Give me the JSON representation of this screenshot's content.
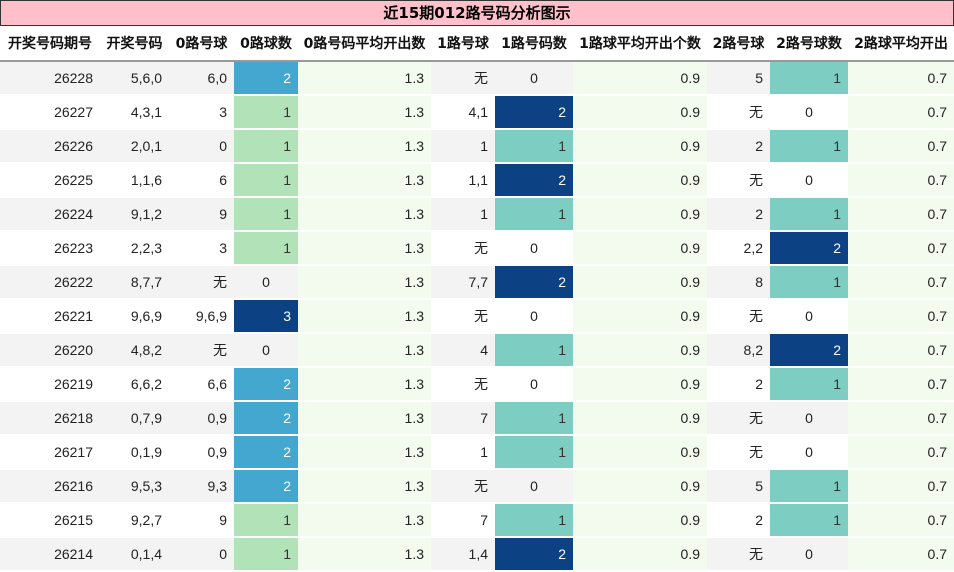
{
  "title": "近15期012路号码分析图示",
  "headers": [
    "开奖号码期号",
    "开奖号码",
    "0路号球",
    "0路球数",
    "0路号码平均开出数",
    "1路号球",
    "1路号码数",
    "1路球平均开出个数",
    "2路号球",
    "2路号球数",
    "2路球平均开出"
  ],
  "rows": [
    {
      "issue": "26228",
      "number": "5,6,0",
      "r0_balls": "6,0",
      "r0_count": "2",
      "r0_avg": "1.3",
      "r1_balls": "无",
      "r1_count": "0",
      "r1_avg": "0.9",
      "r2_balls": "5",
      "r2_count": "1",
      "r2_avg": "0.7"
    },
    {
      "issue": "26227",
      "number": "4,3,1",
      "r0_balls": "3",
      "r0_count": "1",
      "r0_avg": "1.3",
      "r1_balls": "4,1",
      "r1_count": "2",
      "r1_avg": "0.9",
      "r2_balls": "无",
      "r2_count": "0",
      "r2_avg": "0.7"
    },
    {
      "issue": "26226",
      "number": "2,0,1",
      "r0_balls": "0",
      "r0_count": "1",
      "r0_avg": "1.3",
      "r1_balls": "1",
      "r1_count": "1",
      "r1_avg": "0.9",
      "r2_balls": "2",
      "r2_count": "1",
      "r2_avg": "0.7"
    },
    {
      "issue": "26225",
      "number": "1,1,6",
      "r0_balls": "6",
      "r0_count": "1",
      "r0_avg": "1.3",
      "r1_balls": "1,1",
      "r1_count": "2",
      "r1_avg": "0.9",
      "r2_balls": "无",
      "r2_count": "0",
      "r2_avg": "0.7"
    },
    {
      "issue": "26224",
      "number": "9,1,2",
      "r0_balls": "9",
      "r0_count": "1",
      "r0_avg": "1.3",
      "r1_balls": "1",
      "r1_count": "1",
      "r1_avg": "0.9",
      "r2_balls": "2",
      "r2_count": "1",
      "r2_avg": "0.7"
    },
    {
      "issue": "26223",
      "number": "2,2,3",
      "r0_balls": "3",
      "r0_count": "1",
      "r0_avg": "1.3",
      "r1_balls": "无",
      "r1_count": "0",
      "r1_avg": "0.9",
      "r2_balls": "2,2",
      "r2_count": "2",
      "r2_avg": "0.7"
    },
    {
      "issue": "26222",
      "number": "8,7,7",
      "r0_balls": "无",
      "r0_count": "0",
      "r0_avg": "1.3",
      "r1_balls": "7,7",
      "r1_count": "2",
      "r1_avg": "0.9",
      "r2_balls": "8",
      "r2_count": "1",
      "r2_avg": "0.7"
    },
    {
      "issue": "26221",
      "number": "9,6,9",
      "r0_balls": "9,6,9",
      "r0_count": "3",
      "r0_avg": "1.3",
      "r1_balls": "无",
      "r1_count": "0",
      "r1_avg": "0.9",
      "r2_balls": "无",
      "r2_count": "0",
      "r2_avg": "0.7"
    },
    {
      "issue": "26220",
      "number": "4,8,2",
      "r0_balls": "无",
      "r0_count": "0",
      "r0_avg": "1.3",
      "r1_balls": "4",
      "r1_count": "1",
      "r1_avg": "0.9",
      "r2_balls": "8,2",
      "r2_count": "2",
      "r2_avg": "0.7"
    },
    {
      "issue": "26219",
      "number": "6,6,2",
      "r0_balls": "6,6",
      "r0_count": "2",
      "r0_avg": "1.3",
      "r1_balls": "无",
      "r1_count": "0",
      "r1_avg": "0.9",
      "r2_balls": "2",
      "r2_count": "1",
      "r2_avg": "0.7"
    },
    {
      "issue": "26218",
      "number": "0,7,9",
      "r0_balls": "0,9",
      "r0_count": "2",
      "r0_avg": "1.3",
      "r1_balls": "7",
      "r1_count": "1",
      "r1_avg": "0.9",
      "r2_balls": "无",
      "r2_count": "0",
      "r2_avg": "0.7"
    },
    {
      "issue": "26217",
      "number": "0,1,9",
      "r0_balls": "0,9",
      "r0_count": "2",
      "r0_avg": "1.3",
      "r1_balls": "1",
      "r1_count": "1",
      "r1_avg": "0.9",
      "r2_balls": "无",
      "r2_count": "0",
      "r2_avg": "0.7"
    },
    {
      "issue": "26216",
      "number": "9,5,3",
      "r0_balls": "9,3",
      "r0_count": "2",
      "r0_avg": "1.3",
      "r1_balls": "无",
      "r1_count": "0",
      "r1_avg": "0.9",
      "r2_balls": "5",
      "r2_count": "1",
      "r2_avg": "0.7"
    },
    {
      "issue": "26215",
      "number": "9,2,7",
      "r0_balls": "9",
      "r0_count": "1",
      "r0_avg": "1.3",
      "r1_balls": "7",
      "r1_count": "1",
      "r1_avg": "0.9",
      "r2_balls": "2",
      "r2_count": "1",
      "r2_avg": "0.7"
    },
    {
      "issue": "26214",
      "number": "0,1,4",
      "r0_balls": "0",
      "r0_count": "1",
      "r0_avg": "1.3",
      "r1_balls": "1,4",
      "r1_count": "2",
      "r1_avg": "0.9",
      "r2_balls": "无",
      "r2_count": "0",
      "r2_avg": "0.7"
    }
  ],
  "colors": {
    "title_bg": "#ffc0cb",
    "count_light_green": "#b2e2b8",
    "count_mid_blue": "#43a7d0",
    "count_dark_blue": "#0c4283",
    "count_teal": "#7ecdc3",
    "avg_bg": "#f3faee"
  }
}
